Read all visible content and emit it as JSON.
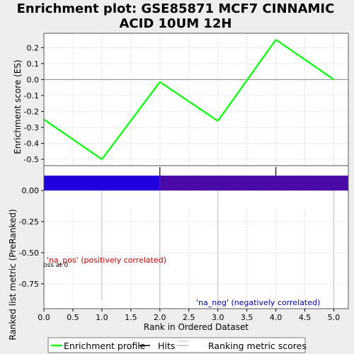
{
  "chart_data": {
    "type": "line",
    "title_line1": "Enrichment plot: GSE85871 MCF7 CINNAMIC",
    "title_line2": "ACID 10UM 12H",
    "top_panel": {
      "ylabel": "Enrichment score (ES)",
      "ylim": [
        -0.54,
        0.29
      ],
      "yticks": [
        0.2,
        0.1,
        0.0,
        -0.1,
        -0.2,
        -0.3,
        -0.4,
        -0.5
      ],
      "ytick_labels": [
        "0.2",
        "0.1",
        "0.0",
        "-0.1",
        "-0.2",
        "-0.3",
        "-0.4",
        "-0.5"
      ],
      "series": [
        {
          "name": "Enrichment profile",
          "color": "#00ff00",
          "x": [
            0,
            1,
            2,
            3,
            4,
            5
          ],
          "y": [
            -0.25,
            -0.5,
            -0.015,
            -0.26,
            0.25,
            0.0
          ]
        }
      ]
    },
    "hits": {
      "x": [
        2,
        4
      ],
      "color": "#000000"
    },
    "bottom_panel": {
      "ylabel": "Ranked list metric (PreRanked)",
      "ylim": [
        -0.95,
        0.2
      ],
      "yticks": [
        0.0,
        -0.25,
        -0.5,
        -0.75
      ],
      "ytick_labels": [
        "0.00",
        "-0.25",
        "-0.50",
        "-0.75"
      ],
      "pos_label": "'na_pos' (positively correlated)",
      "neg_label": "'na_neg' (negatively correlated)",
      "zero_cross_text": "oss at 0",
      "bar_color_left": "#2200dd",
      "bar_color_right": "#4a0aa8"
    },
    "xlabel": "Rank in Ordered Dataset",
    "xlim": [
      0,
      5.25
    ],
    "xticks": [
      0,
      0.5,
      1,
      1.5,
      2,
      2.5,
      3,
      3.5,
      4,
      4.5,
      5
    ],
    "xtick_labels": [
      "0.0",
      "0.5",
      "1.0",
      "1.5",
      "2.0",
      "2.5",
      "3.0",
      "3.5",
      "4.0",
      "4.5",
      "5.0"
    ],
    "legend": {
      "position": "bottom",
      "items": [
        {
          "label": "Enrichment profile",
          "color": "#00ff00"
        },
        {
          "label": "Hits",
          "color": "#000000"
        },
        {
          "label": "Ranking metric scores",
          "color": "#bbbbbb"
        }
      ]
    }
  }
}
